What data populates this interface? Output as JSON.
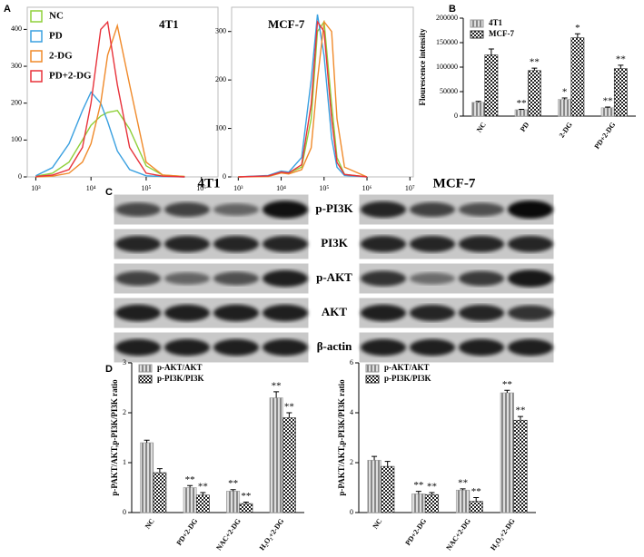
{
  "chart_data": [
    {
      "type": "line",
      "panel": "A",
      "annotation": "4T1",
      "xscale": "log",
      "legend": "upper left",
      "x": [
        1000,
        2000,
        4000,
        7000,
        10000,
        15000,
        20000,
        30000,
        50000,
        100000,
        200000,
        500000
      ],
      "xlim": [
        700,
        2000000
      ],
      "ylim": [
        0,
        460
      ],
      "xticks": [
        {
          "value": 1000,
          "label": "10³"
        },
        {
          "value": 10000,
          "label": "10⁴"
        },
        {
          "value": 100000,
          "label": "10⁵"
        },
        {
          "value": 1000000,
          "label": "10⁶"
        }
      ],
      "yticks": [
        0,
        100,
        200,
        300,
        400
      ],
      "series": [
        {
          "name": "NC",
          "color": "#8fd03a",
          "values": [
            2,
            10,
            40,
            100,
            140,
            165,
            175,
            180,
            130,
            30,
            5,
            1
          ]
        },
        {
          "name": "PD",
          "color": "#3aa0e0",
          "values": [
            3,
            25,
            90,
            180,
            230,
            200,
            150,
            70,
            20,
            3,
            1,
            0
          ]
        },
        {
          "name": "2-DG",
          "color": "#f08a2a",
          "values": [
            0,
            2,
            10,
            40,
            90,
            200,
            330,
            410,
            250,
            40,
            5,
            1
          ]
        },
        {
          "name": "PD+2-DG",
          "color": "#e8323a",
          "values": [
            1,
            5,
            20,
            80,
            200,
            400,
            420,
            250,
            80,
            10,
            2,
            0
          ]
        }
      ]
    },
    {
      "type": "line",
      "annotation": "MCF-7",
      "xscale": "log",
      "x": [
        1000,
        5000,
        10000,
        15000,
        30000,
        50000,
        70000,
        100000,
        150000,
        200000,
        300000,
        1000000
      ],
      "xlim": [
        700,
        12000000
      ],
      "ylim": [
        0,
        350
      ],
      "xticks": [
        {
          "value": 1000,
          "label": "10³"
        },
        {
          "value": 10000,
          "label": "10⁴"
        },
        {
          "value": 100000,
          "label": "10⁵"
        },
        {
          "value": 1000000,
          "label": "10⁶"
        },
        {
          "value": 10000000,
          "label": "10⁷"
        }
      ],
      "yticks": [
        0,
        100,
        200,
        300
      ],
      "series": [
        {
          "color": "#8fd03a",
          "values": [
            0,
            2,
            10,
            8,
            20,
            120,
            300,
            320,
            150,
            40,
            5,
            0
          ]
        },
        {
          "color": "#3aa0e0",
          "values": [
            0,
            3,
            12,
            10,
            40,
            200,
            335,
            250,
            80,
            20,
            3,
            0
          ]
        },
        {
          "color": "#f08a2a",
          "values": [
            0,
            1,
            8,
            6,
            15,
            60,
            200,
            320,
            300,
            120,
            20,
            0
          ]
        },
        {
          "color": "#e8323a",
          "values": [
            0,
            2,
            10,
            8,
            25,
            150,
            320,
            300,
            120,
            30,
            5,
            0
          ]
        }
      ]
    },
    {
      "type": "bar",
      "panel": "B",
      "ylabel": "Flourescence intensity",
      "legend": "upper left",
      "categories": [
        "NC",
        "PD",
        "2-DG",
        "PD+2-DG"
      ],
      "ylim": [
        0,
        200000
      ],
      "yticks": [
        0,
        50000,
        100000,
        150000,
        200000
      ],
      "series": [
        {
          "name": "4T1",
          "pattern": "striped",
          "color": "#999999",
          "values": [
            28000,
            13000,
            34000,
            17000
          ],
          "errors": [
            2000,
            1000,
            3000,
            1500
          ],
          "markers": [
            null,
            "**",
            "*",
            "**"
          ]
        },
        {
          "name": "MCF-7",
          "pattern": "checkered",
          "color": "#333333",
          "values": [
            125000,
            93000,
            160000,
            97000
          ],
          "errors": [
            12000,
            5000,
            8000,
            7000
          ],
          "markers": [
            null,
            "**",
            "*",
            "**"
          ]
        }
      ]
    },
    {
      "type": "bar",
      "panel": "D",
      "ylabel": "p-PAKT/AKT,p-PI3K/PI3K ratio",
      "legend": "upper left",
      "categories": [
        "NC",
        "PD+2-DG",
        "NAC+2-DG",
        "H₂O₂+2-DG"
      ],
      "ylim": [
        0,
        3
      ],
      "yticks": [
        0,
        1,
        2,
        3
      ],
      "series": [
        {
          "name": "p-AKT/AKT",
          "pattern": "striped",
          "color": "#999999",
          "values": [
            1.4,
            0.5,
            0.43,
            2.3
          ],
          "errors": [
            0.05,
            0.04,
            0.03,
            0.12
          ],
          "markers": [
            null,
            "**",
            "**",
            "**"
          ]
        },
        {
          "name": "p-PI3K/PI3K",
          "pattern": "checkered",
          "color": "#333333",
          "values": [
            0.8,
            0.35,
            0.18,
            1.9
          ],
          "errors": [
            0.08,
            0.05,
            0.03,
            0.1
          ],
          "markers": [
            null,
            "**",
            "**",
            "**"
          ]
        }
      ]
    },
    {
      "type": "bar",
      "ylabel": "p-PAKT/AKT,p-PI3K/PI3K ratio",
      "legend": "upper left",
      "categories": [
        "NC",
        "PD+2-DG",
        "NAC+2-DG",
        "H₂O₂+2-DG"
      ],
      "ylim": [
        0,
        6
      ],
      "yticks": [
        0,
        2,
        4,
        6
      ],
      "series": [
        {
          "name": "p-AKT/AKT",
          "pattern": "striped",
          "color": "#999999",
          "values": [
            2.1,
            0.75,
            0.9,
            4.8
          ],
          "errors": [
            0.15,
            0.1,
            0.05,
            0.1
          ],
          "markers": [
            null,
            "**",
            "**",
            "**"
          ]
        },
        {
          "name": "p-PI3K/PI3K",
          "pattern": "checkered",
          "color": "#333333",
          "values": [
            1.85,
            0.72,
            0.45,
            3.7
          ],
          "errors": [
            0.2,
            0.08,
            0.15,
            0.15
          ],
          "markers": [
            null,
            "**",
            "**",
            "**"
          ]
        }
      ]
    }
  ],
  "blot": {
    "panel": "C",
    "cell_lines": [
      "4T1",
      "MCF-7"
    ],
    "proteins": [
      "p-PI3K",
      "PI3K",
      "p-AKT",
      "AKT",
      "β-actin"
    ]
  }
}
